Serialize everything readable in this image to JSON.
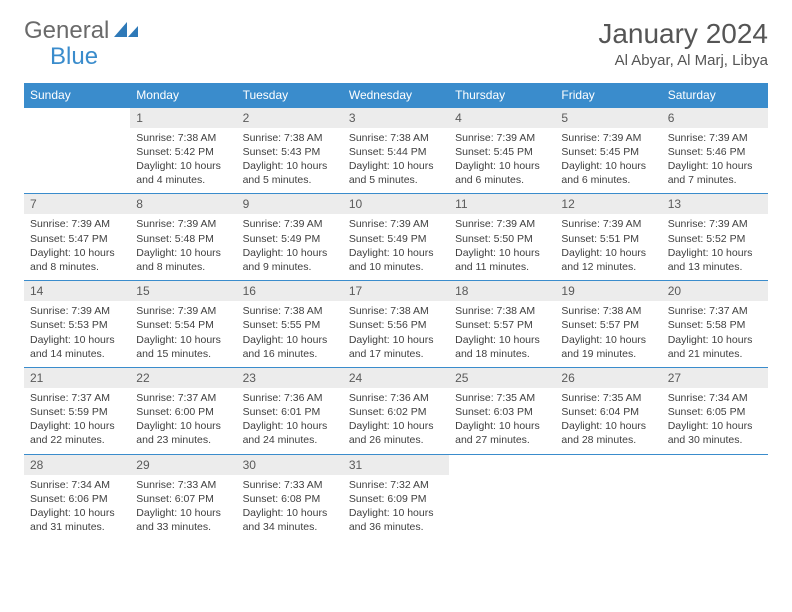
{
  "logo": {
    "word1": "General",
    "word2": "Blue"
  },
  "header": {
    "month": "January 2024",
    "location": "Al Abyar, Al Marj, Libya"
  },
  "weekdays": [
    "Sunday",
    "Monday",
    "Tuesday",
    "Wednesday",
    "Thursday",
    "Friday",
    "Saturday"
  ],
  "colors": {
    "brand_blue": "#3a8ccc",
    "header_text": "#ffffff",
    "daynum_bg": "#ececec",
    "body_text": "#404040",
    "page_bg": "#ffffff"
  },
  "typography": {
    "title_fontsize": 28,
    "location_fontsize": 15,
    "weekday_fontsize": 12,
    "daynum_fontsize": 12,
    "daytext_fontsize": 10.5
  },
  "layout": {
    "cols": 7,
    "rows": 5,
    "leading_blanks": 1
  },
  "days": [
    {
      "n": "1",
      "sr": "7:38 AM",
      "ss": "5:42 PM",
      "dl": "10 hours and 4 minutes."
    },
    {
      "n": "2",
      "sr": "7:38 AM",
      "ss": "5:43 PM",
      "dl": "10 hours and 5 minutes."
    },
    {
      "n": "3",
      "sr": "7:38 AM",
      "ss": "5:44 PM",
      "dl": "10 hours and 5 minutes."
    },
    {
      "n": "4",
      "sr": "7:39 AM",
      "ss": "5:45 PM",
      "dl": "10 hours and 6 minutes."
    },
    {
      "n": "5",
      "sr": "7:39 AM",
      "ss": "5:45 PM",
      "dl": "10 hours and 6 minutes."
    },
    {
      "n": "6",
      "sr": "7:39 AM",
      "ss": "5:46 PM",
      "dl": "10 hours and 7 minutes."
    },
    {
      "n": "7",
      "sr": "7:39 AM",
      "ss": "5:47 PM",
      "dl": "10 hours and 8 minutes."
    },
    {
      "n": "8",
      "sr": "7:39 AM",
      "ss": "5:48 PM",
      "dl": "10 hours and 8 minutes."
    },
    {
      "n": "9",
      "sr": "7:39 AM",
      "ss": "5:49 PM",
      "dl": "10 hours and 9 minutes."
    },
    {
      "n": "10",
      "sr": "7:39 AM",
      "ss": "5:49 PM",
      "dl": "10 hours and 10 minutes."
    },
    {
      "n": "11",
      "sr": "7:39 AM",
      "ss": "5:50 PM",
      "dl": "10 hours and 11 minutes."
    },
    {
      "n": "12",
      "sr": "7:39 AM",
      "ss": "5:51 PM",
      "dl": "10 hours and 12 minutes."
    },
    {
      "n": "13",
      "sr": "7:39 AM",
      "ss": "5:52 PM",
      "dl": "10 hours and 13 minutes."
    },
    {
      "n": "14",
      "sr": "7:39 AM",
      "ss": "5:53 PM",
      "dl": "10 hours and 14 minutes."
    },
    {
      "n": "15",
      "sr": "7:39 AM",
      "ss": "5:54 PM",
      "dl": "10 hours and 15 minutes."
    },
    {
      "n": "16",
      "sr": "7:38 AM",
      "ss": "5:55 PM",
      "dl": "10 hours and 16 minutes."
    },
    {
      "n": "17",
      "sr": "7:38 AM",
      "ss": "5:56 PM",
      "dl": "10 hours and 17 minutes."
    },
    {
      "n": "18",
      "sr": "7:38 AM",
      "ss": "5:57 PM",
      "dl": "10 hours and 18 minutes."
    },
    {
      "n": "19",
      "sr": "7:38 AM",
      "ss": "5:57 PM",
      "dl": "10 hours and 19 minutes."
    },
    {
      "n": "20",
      "sr": "7:37 AM",
      "ss": "5:58 PM",
      "dl": "10 hours and 21 minutes."
    },
    {
      "n": "21",
      "sr": "7:37 AM",
      "ss": "5:59 PM",
      "dl": "10 hours and 22 minutes."
    },
    {
      "n": "22",
      "sr": "7:37 AM",
      "ss": "6:00 PM",
      "dl": "10 hours and 23 minutes."
    },
    {
      "n": "23",
      "sr": "7:36 AM",
      "ss": "6:01 PM",
      "dl": "10 hours and 24 minutes."
    },
    {
      "n": "24",
      "sr": "7:36 AM",
      "ss": "6:02 PM",
      "dl": "10 hours and 26 minutes."
    },
    {
      "n": "25",
      "sr": "7:35 AM",
      "ss": "6:03 PM",
      "dl": "10 hours and 27 minutes."
    },
    {
      "n": "26",
      "sr": "7:35 AM",
      "ss": "6:04 PM",
      "dl": "10 hours and 28 minutes."
    },
    {
      "n": "27",
      "sr": "7:34 AM",
      "ss": "6:05 PM",
      "dl": "10 hours and 30 minutes."
    },
    {
      "n": "28",
      "sr": "7:34 AM",
      "ss": "6:06 PM",
      "dl": "10 hours and 31 minutes."
    },
    {
      "n": "29",
      "sr": "7:33 AM",
      "ss": "6:07 PM",
      "dl": "10 hours and 33 minutes."
    },
    {
      "n": "30",
      "sr": "7:33 AM",
      "ss": "6:08 PM",
      "dl": "10 hours and 34 minutes."
    },
    {
      "n": "31",
      "sr": "7:32 AM",
      "ss": "6:09 PM",
      "dl": "10 hours and 36 minutes."
    }
  ],
  "labels": {
    "sunrise": "Sunrise:",
    "sunset": "Sunset:",
    "daylight": "Daylight:"
  }
}
